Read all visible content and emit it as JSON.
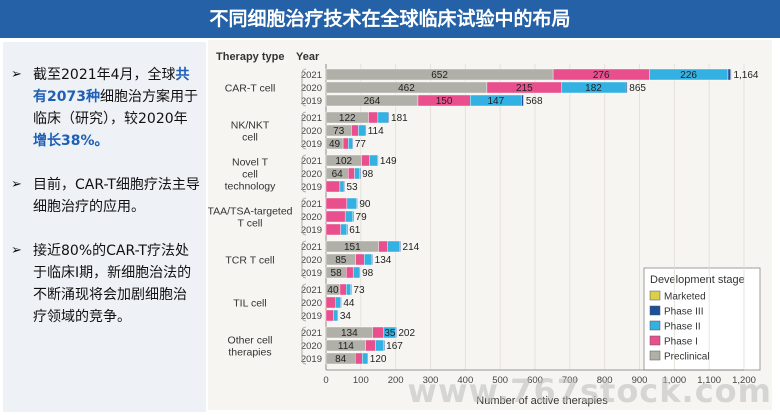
{
  "title": "不同细胞治疗技术在全球临床试验中的布局",
  "bullets": [
    {
      "segments": [
        {
          "text": "截至2021年4月，全球",
          "hl": false
        },
        {
          "text": "共有2073种",
          "hl": true
        },
        {
          "text": "细胞治方案用于临床（研究），较2020年",
          "hl": false
        },
        {
          "text": "增长38%。",
          "hl": true
        }
      ]
    },
    {
      "segments": [
        {
          "text": "目前，CAR-T细胞疗法主导细胞治疗的应用。",
          "hl": false
        }
      ]
    },
    {
      "segments": [
        {
          "text": "接近80%的CAR-T疗法处于临床I期，新细胞治法的不断涌现将会加剧细胞治疗领域的竞争。",
          "hl": false
        }
      ]
    }
  ],
  "watermark": "www.767stock.com",
  "chart_data": {
    "type": "bar",
    "orientation": "horizontal",
    "stacked": true,
    "col_header_type": "Therapy type",
    "col_header_year": "Year",
    "xlabel": "Number of active therapies",
    "xlim": [
      0,
      1200
    ],
    "xticks": [
      "0",
      "100",
      "200",
      "300",
      "400",
      "500",
      "600",
      "700",
      "800",
      "900",
      "1,000",
      "1,100",
      "1,200"
    ],
    "legend_title": "Development stage",
    "legend_position": "bottom-right",
    "stages": [
      {
        "key": "marketed",
        "name": "Marketed",
        "color": "#d9cf4a"
      },
      {
        "key": "p3",
        "name": "Phase III",
        "color": "#1d4f9c"
      },
      {
        "key": "p2",
        "name": "Phase II",
        "color": "#33b1e2"
      },
      {
        "key": "p1",
        "name": "Phase I",
        "color": "#e84f8c"
      },
      {
        "key": "pre",
        "name": "Preclinical",
        "color": "#b1b0a8"
      }
    ],
    "groups": [
      {
        "name": "CAR-T cell",
        "rows": [
          {
            "year": "2021",
            "pre": 652,
            "p1": 276,
            "p2": 226,
            "p3": 8,
            "marketed": 2,
            "pre_label": "652",
            "p1_label": "276",
            "p2_label": "226",
            "total_label": "1,164"
          },
          {
            "year": "2020",
            "pre": 462,
            "p1": 215,
            "p2": 182,
            "p3": 5,
            "marketed": 1,
            "pre_label": "462",
            "p1_label": "215",
            "p2_label": "182",
            "total_label": "865"
          },
          {
            "year": "2019",
            "pre": 264,
            "p1": 150,
            "p2": 147,
            "p3": 6,
            "marketed": 1,
            "pre_label": "264",
            "p1_label": "150",
            "p2_label": "147",
            "total_label": "568"
          }
        ]
      },
      {
        "name": "NK/NKT cell",
        "rows": [
          {
            "year": "2021",
            "pre": 122,
            "p1": 27,
            "p2": 30,
            "p3": 2,
            "marketed": 0,
            "pre_label": "122",
            "total_label": "181"
          },
          {
            "year": "2020",
            "pre": 73,
            "p1": 20,
            "p2": 20,
            "p3": 1,
            "marketed": 0,
            "pre_label": "73",
            "total_label": "114"
          },
          {
            "year": "2019",
            "pre": 49,
            "p1": 15,
            "p2": 12,
            "p3": 1,
            "marketed": 0,
            "pre_label": "49",
            "total_label": "77"
          }
        ]
      },
      {
        "name": "Novel T cell technology",
        "rows": [
          {
            "year": "2021",
            "pre": 102,
            "p1": 22,
            "p2": 24,
            "p3": 1,
            "marketed": 0,
            "pre_label": "102",
            "total_label": "149"
          },
          {
            "year": "2020",
            "pre": 64,
            "p1": 18,
            "p2": 15,
            "p3": 1,
            "marketed": 0,
            "pre_label": "64",
            "total_label": "98"
          },
          {
            "year": "2019",
            "pre": 0,
            "p1": 40,
            "p2": 12,
            "p3": 1,
            "marketed": 0,
            "total_label": "53"
          }
        ]
      },
      {
        "name": "TAA/TSA-targeted T cell",
        "rows": [
          {
            "year": "2021",
            "pre": 0,
            "p1": 60,
            "p2": 28,
            "p3": 2,
            "marketed": 0,
            "total_label": "90"
          },
          {
            "year": "2020",
            "pre": 0,
            "p1": 55,
            "p2": 22,
            "p3": 2,
            "marketed": 0,
            "total_label": "79"
          },
          {
            "year": "2019",
            "pre": 0,
            "p1": 42,
            "p2": 18,
            "p3": 1,
            "marketed": 0,
            "total_label": "61"
          }
        ]
      },
      {
        "name": "TCR T cell",
        "rows": [
          {
            "year": "2021",
            "pre": 151,
            "p1": 25,
            "p2": 35,
            "p3": 3,
            "marketed": 0,
            "pre_label": "151",
            "total_label": "214"
          },
          {
            "year": "2020",
            "pre": 85,
            "p1": 25,
            "p2": 22,
            "p3": 2,
            "marketed": 0,
            "pre_label": "85",
            "total_label": "134"
          },
          {
            "year": "2019",
            "pre": 58,
            "p1": 20,
            "p2": 18,
            "p3": 2,
            "marketed": 0,
            "pre_label": "58",
            "total_label": "98"
          }
        ]
      },
      {
        "name": "TIL cell",
        "rows": [
          {
            "year": "2021",
            "pre": 40,
            "p1": 18,
            "p2": 13,
            "p3": 2,
            "marketed": 0,
            "pre_label": "40",
            "total_label": "73"
          },
          {
            "year": "2020",
            "pre": 0,
            "p1": 28,
            "p2": 14,
            "p3": 2,
            "marketed": 0,
            "total_label": "44"
          },
          {
            "year": "2019",
            "pre": 0,
            "p1": 22,
            "p2": 11,
            "p3": 1,
            "marketed": 0,
            "total_label": "34"
          }
        ]
      },
      {
        "name": "Other cell therapies",
        "rows": [
          {
            "year": "2021",
            "pre": 134,
            "p1": 32,
            "p2": 35,
            "p3": 1,
            "marketed": 0,
            "pre_label": "134",
            "p2_label": "35",
            "total_label": "202"
          },
          {
            "year": "2020",
            "pre": 114,
            "p1": 28,
            "p2": 24,
            "p3": 1,
            "marketed": 0,
            "pre_label": "114",
            "total_label": "167"
          },
          {
            "year": "2019",
            "pre": 84,
            "p1": 20,
            "p2": 15,
            "p3": 1,
            "marketed": 0,
            "pre_label": "84",
            "total_label": "120"
          }
        ]
      }
    ]
  }
}
